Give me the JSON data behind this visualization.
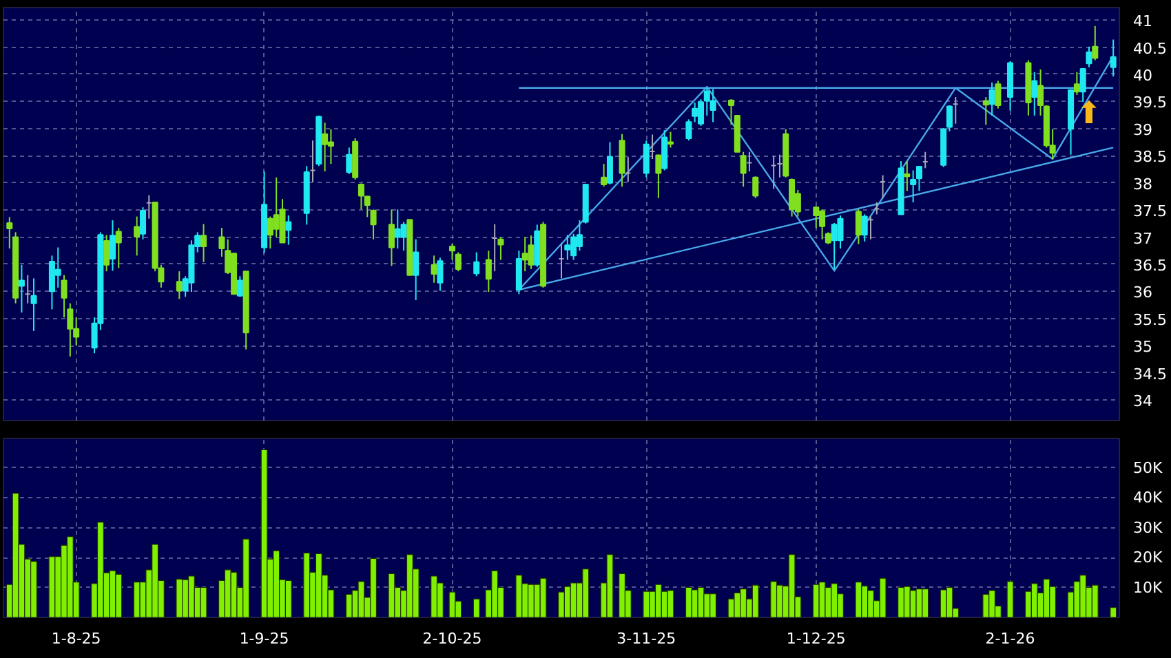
{
  "chart_data": [
    {
      "type": "candlestick",
      "x": [
        "2025-07-21",
        "2025-07-22",
        "2025-07-23",
        "2025-07-24",
        "2025-07-25",
        "2025-07-28",
        "2025-07-29",
        "2025-07-30",
        "2025-07-31",
        "2025-08-01",
        "2025-08-04",
        "2025-08-05",
        "2025-08-06",
        "2025-08-07",
        "2025-08-08",
        "2025-08-11",
        "2025-08-12",
        "2025-08-13",
        "2025-08-14",
        "2025-08-15",
        "2025-08-18",
        "2025-08-19",
        "2025-08-20",
        "2025-08-21",
        "2025-08-22",
        "2025-08-25",
        "2025-08-26",
        "2025-08-27",
        "2025-08-28",
        "2025-08-29",
        "2025-09-01",
        "2025-09-02",
        "2025-09-03",
        "2025-09-04",
        "2025-09-05",
        "2025-09-08",
        "2025-09-09",
        "2025-09-10",
        "2025-09-11",
        "2025-09-12",
        "2025-09-15",
        "2025-09-16",
        "2025-09-17",
        "2025-09-18",
        "2025-09-19",
        "2025-09-22",
        "2025-09-23",
        "2025-09-24",
        "2025-09-25",
        "2025-09-26",
        "2025-09-29",
        "2025-09-30",
        "2025-10-02",
        "2025-10-03",
        "2025-10-06",
        "2025-10-08",
        "2025-10-09",
        "2025-10-10",
        "2025-10-13",
        "2025-10-14",
        "2025-10-15",
        "2025-10-16",
        "2025-10-17",
        "2025-10-20",
        "2025-10-21",
        "2025-10-22",
        "2025-10-23",
        "2025-10-24",
        "2025-10-27",
        "2025-10-28",
        "2025-10-30",
        "2025-10-31",
        "2025-11-03",
        "2025-11-04",
        "2025-11-05",
        "2025-11-06",
        "2025-11-07",
        "2025-11-10",
        "2025-11-11",
        "2025-11-12",
        "2025-11-13",
        "2025-11-14",
        "2025-11-17",
        "2025-11-18",
        "2025-11-19",
        "2025-11-20",
        "2025-11-21",
        "2025-11-24",
        "2025-11-25",
        "2025-11-26",
        "2025-11-27",
        "2025-11-28",
        "2025-12-01",
        "2025-12-02",
        "2025-12-03",
        "2025-12-04",
        "2025-12-05",
        "2025-12-08",
        "2025-12-09",
        "2025-12-10",
        "2025-12-11",
        "2025-12-12",
        "2025-12-15",
        "2025-12-16",
        "2025-12-17",
        "2025-12-18",
        "2025-12-19",
        "2025-12-22",
        "2025-12-23",
        "2025-12-24",
        "2025-12-29",
        "2025-12-30",
        "2025-12-31",
        "2026-01-02",
        "2026-01-05",
        "2026-01-06",
        "2026-01-07",
        "2026-01-08",
        "2026-01-09",
        "2026-01-12",
        "2026-01-13",
        "2026-01-14",
        "2026-01-15",
        "2026-01-16",
        "2026-01-19"
      ],
      "ohlc": [
        [
          37.26,
          37.37,
          36.79,
          37.16
        ],
        [
          37.0,
          37.09,
          35.78,
          35.88
        ],
        [
          36.1,
          36.49,
          35.61,
          36.2
        ],
        [
          35.95,
          36.3,
          35.78,
          35.95
        ],
        [
          35.78,
          36.24,
          35.27,
          35.92
        ],
        [
          36.0,
          36.66,
          35.67,
          36.55
        ],
        [
          36.3,
          36.81,
          36.07,
          36.4
        ],
        [
          36.2,
          36.3,
          35.52,
          35.88
        ],
        [
          35.67,
          35.78,
          34.8,
          35.31
        ],
        [
          35.31,
          35.52,
          35.01,
          35.16
        ],
        [
          34.96,
          35.52,
          34.86,
          35.41
        ],
        [
          35.41,
          37.09,
          35.29,
          37.04
        ],
        [
          36.93,
          37.04,
          36.37,
          36.49
        ],
        [
          36.6,
          37.31,
          36.38,
          37.03
        ],
        [
          37.1,
          37.17,
          36.43,
          36.9
        ],
        [
          37.19,
          37.38,
          36.66,
          37.01
        ],
        [
          37.06,
          37.55,
          36.96,
          37.49
        ],
        [
          37.63,
          37.77,
          37.34,
          37.63
        ],
        [
          37.64,
          37.64,
          36.37,
          36.43
        ],
        [
          36.43,
          36.49,
          36.07,
          36.18
        ],
        [
          36.18,
          36.37,
          35.86,
          36.01
        ],
        [
          36.01,
          36.28,
          35.9,
          36.23
        ],
        [
          36.16,
          36.94,
          35.99,
          36.85
        ],
        [
          36.83,
          37.09,
          36.72,
          37.03
        ],
        [
          37.03,
          37.24,
          36.54,
          36.83
        ],
        [
          37.0,
          37.17,
          36.64,
          36.79
        ],
        [
          36.75,
          36.96,
          36.32,
          36.35
        ],
        [
          36.7,
          36.7,
          35.94,
          35.95
        ],
        [
          35.92,
          36.28,
          35.9,
          36.2
        ],
        [
          36.37,
          36.37,
          34.93,
          35.24
        ],
        [
          36.81,
          38.21,
          36.71,
          37.6
        ],
        [
          37.34,
          37.38,
          36.79,
          37.04
        ],
        [
          37.41,
          38.1,
          37.0,
          37.15
        ],
        [
          37.51,
          37.7,
          36.9,
          36.9
        ],
        [
          37.13,
          37.4,
          36.86,
          37.28
        ],
        [
          37.44,
          38.31,
          37.23,
          38.2
        ],
        [
          38.23,
          38.78,
          38.02,
          38.23
        ],
        [
          38.35,
          39.24,
          38.31,
          39.22
        ],
        [
          38.9,
          39.11,
          38.21,
          38.71
        ],
        [
          38.75,
          38.99,
          38.35,
          38.68
        ],
        [
          38.2,
          38.65,
          38.16,
          38.52
        ],
        [
          38.76,
          38.82,
          38.06,
          38.1
        ],
        [
          37.97,
          37.99,
          37.51,
          37.76
        ],
        [
          37.75,
          37.76,
          37.37,
          37.59
        ],
        [
          37.49,
          37.51,
          36.96,
          37.23
        ],
        [
          37.23,
          37.51,
          36.47,
          36.81
        ],
        [
          37.0,
          37.51,
          36.79,
          37.15
        ],
        [
          37.0,
          37.28,
          36.75,
          37.23
        ],
        [
          37.32,
          37.32,
          36.3,
          36.3
        ],
        [
          36.3,
          36.96,
          35.84,
          36.72
        ],
        [
          36.49,
          36.66,
          36.16,
          36.32
        ],
        [
          36.16,
          36.62,
          36.01,
          36.56
        ],
        [
          36.83,
          36.88,
          36.58,
          36.75
        ],
        [
          36.68,
          36.72,
          36.37,
          36.41
        ],
        [
          36.33,
          36.72,
          36.28,
          36.54
        ],
        [
          36.58,
          36.75,
          35.99,
          36.23
        ],
        [
          36.98,
          37.24,
          36.37,
          36.98
        ],
        [
          36.96,
          37.0,
          36.58,
          36.86
        ],
        [
          36.03,
          36.75,
          35.95,
          36.6
        ],
        [
          36.7,
          37.0,
          36.37,
          36.58
        ],
        [
          36.85,
          37.03,
          36.41,
          36.49
        ],
        [
          36.49,
          37.23,
          36.45,
          37.11
        ],
        [
          37.23,
          37.28,
          36.07,
          36.1
        ],
        [
          36.6,
          36.89,
          36.24,
          36.6
        ],
        [
          36.77,
          37.04,
          36.58,
          36.85
        ],
        [
          36.66,
          37.06,
          36.58,
          37.0
        ],
        [
          36.83,
          37.31,
          36.75,
          37.04
        ],
        [
          37.28,
          37.97,
          37.25,
          37.97
        ],
        [
          38.1,
          38.35,
          37.93,
          37.97
        ],
        [
          38.0,
          38.75,
          37.97,
          38.48
        ],
        [
          38.78,
          38.9,
          37.93,
          38.18
        ],
        [
          38.18,
          38.48,
          38.02,
          38.18
        ],
        [
          38.18,
          38.78,
          38.1,
          38.71
        ],
        [
          38.58,
          38.89,
          38.44,
          38.58
        ],
        [
          38.51,
          38.52,
          37.72,
          38.18
        ],
        [
          38.27,
          38.97,
          38.23,
          38.84
        ],
        [
          38.75,
          38.94,
          38.65,
          38.72
        ],
        [
          38.82,
          39.17,
          38.78,
          39.12
        ],
        [
          39.23,
          39.48,
          39.12,
          39.37
        ],
        [
          39.09,
          39.54,
          39.05,
          39.49
        ],
        [
          39.51,
          39.75,
          39.24,
          39.69
        ],
        [
          39.34,
          39.73,
          39.12,
          39.51
        ],
        [
          39.52,
          39.54,
          39.07,
          39.43
        ],
        [
          39.24,
          39.24,
          38.57,
          38.57
        ],
        [
          38.5,
          38.57,
          37.93,
          38.18
        ],
        [
          38.37,
          38.57,
          38.21,
          38.37
        ],
        [
          38.1,
          38.12,
          37.72,
          37.76
        ],
        [
          38.32,
          38.5,
          37.89,
          38.32
        ],
        [
          38.35,
          38.52,
          38.1,
          38.35
        ],
        [
          38.9,
          38.99,
          38.1,
          38.13
        ],
        [
          38.06,
          38.08,
          37.38,
          37.51
        ],
        [
          37.8,
          37.87,
          37.38,
          37.47
        ],
        [
          37.55,
          37.57,
          37.17,
          37.4
        ],
        [
          37.48,
          37.51,
          36.96,
          37.2
        ],
        [
          37.06,
          37.09,
          36.87,
          36.9
        ],
        [
          36.94,
          37.26,
          36.41,
          37.23
        ],
        [
          36.94,
          37.4,
          36.79,
          37.34
        ],
        [
          37.47,
          37.51,
          36.87,
          37.04
        ],
        [
          37.04,
          37.42,
          36.92,
          37.38
        ],
        [
          37.32,
          37.38,
          36.96,
          37.32
        ],
        [
          37.52,
          37.64,
          37.42,
          37.52
        ],
        [
          38.02,
          38.14,
          37.72,
          38.02
        ],
        [
          37.42,
          38.4,
          37.42,
          38.27
        ],
        [
          38.16,
          38.4,
          37.85,
          38.12
        ],
        [
          37.97,
          38.23,
          37.64,
          38.06
        ],
        [
          38.08,
          38.31,
          37.85,
          38.3
        ],
        [
          38.39,
          38.57,
          38.27,
          38.39
        ],
        [
          38.33,
          39.01,
          38.29,
          38.99
        ],
        [
          39.03,
          39.43,
          38.95,
          39.41
        ],
        [
          39.45,
          39.58,
          39.09,
          39.45
        ],
        [
          39.51,
          39.58,
          39.07,
          39.44
        ],
        [
          39.45,
          39.85,
          39.24,
          39.71
        ],
        [
          39.82,
          39.88,
          39.37,
          39.43
        ],
        [
          39.58,
          40.24,
          39.33,
          40.21
        ],
        [
          40.21,
          40.26,
          39.24,
          39.48
        ],
        [
          39.58,
          40.04,
          39.24,
          39.88
        ],
        [
          39.79,
          40.09,
          39.24,
          39.43
        ],
        [
          39.41,
          39.43,
          38.65,
          38.69
        ],
        [
          38.69,
          38.99,
          38.44,
          38.55
        ],
        [
          38.99,
          39.71,
          38.52,
          39.71
        ],
        [
          39.82,
          40.04,
          39.62,
          39.68
        ],
        [
          39.68,
          40.1,
          39.49,
          40.1
        ],
        [
          40.2,
          40.51,
          40.13,
          40.41
        ],
        [
          40.51,
          40.89,
          40.26,
          40.3
        ],
        [
          40.13,
          40.64,
          39.96,
          40.32
        ]
      ],
      "colors": [
        "#80e020",
        "#80e020",
        "#20e8f0",
        "#a8a8b8",
        "#20e8f0",
        "#20e8f0",
        "#20e8f0",
        "#80e020",
        "#80e020",
        "#80e020",
        "#20e8f0",
        "#20e8f0",
        "#80e020",
        "#20e8f0",
        "#80e020",
        "#80e020",
        "#20e8f0",
        "#a8a8b8",
        "#80e020",
        "#80e020",
        "#80e020",
        "#20e8f0",
        "#20e8f0",
        "#20e8f0",
        "#80e020",
        "#80e020",
        "#80e020",
        "#80e020",
        "#20e8f0",
        "#80e020",
        "#20e8f0",
        "#80e020",
        "#80e020",
        "#80e020",
        "#20e8f0",
        "#20e8f0",
        "#a8a8b8",
        "#20e8f0",
        "#80e020",
        "#80e020",
        "#20e8f0",
        "#80e020",
        "#80e020",
        "#80e020",
        "#80e020",
        "#80e020",
        "#20e8f0",
        "#20e8f0",
        "#80e020",
        "#20e8f0",
        "#80e020",
        "#20e8f0",
        "#80e020",
        "#80e020",
        "#20e8f0",
        "#80e020",
        "#a8a8b8",
        "#80e020",
        "#20e8f0",
        "#80e020",
        "#80e020",
        "#20e8f0",
        "#80e020",
        "#a8a8b8",
        "#20e8f0",
        "#20e8f0",
        "#20e8f0",
        "#20e8f0",
        "#80e020",
        "#20e8f0",
        "#80e020",
        "#a8a8b8",
        "#20e8f0",
        "#a8a8b8",
        "#80e020",
        "#20e8f0",
        "#80e020",
        "#20e8f0",
        "#20e8f0",
        "#20e8f0",
        "#20e8f0",
        "#20e8f0",
        "#80e020",
        "#80e020",
        "#80e020",
        "#a8a8b8",
        "#80e020",
        "#a8a8b8",
        "#a8a8b8",
        "#80e020",
        "#80e020",
        "#80e020",
        "#80e020",
        "#80e020",
        "#80e020",
        "#20e8f0",
        "#20e8f0",
        "#80e020",
        "#20e8f0",
        "#a8a8b8",
        "#a8a8b8",
        "#a8a8b8",
        "#20e8f0",
        "#80e020",
        "#20e8f0",
        "#20e8f0",
        "#a8a8b8",
        "#20e8f0",
        "#20e8f0",
        "#a8a8b8",
        "#80e020",
        "#20e8f0",
        "#80e020",
        "#20e8f0",
        "#80e020",
        "#20e8f0",
        "#80e020",
        "#80e020",
        "#80e020",
        "#20e8f0",
        "#80e020",
        "#20e8f0",
        "#20e8f0",
        "#80e020",
        "#20e8f0"
      ],
      "series": [
        {
          "type": "line",
          "color": "#48a8e8",
          "x": [
            "2025-10-13",
            "2026-01-19"
          ],
          "values": [
            39.75,
            39.75
          ]
        },
        {
          "type": "line",
          "color": "#48a8e8",
          "x": [
            "2025-10-13",
            "2026-01-19"
          ],
          "values": [
            36.03,
            38.65
          ]
        },
        {
          "type": "line",
          "color": "#48a8e8",
          "x": [
            "2025-10-13",
            "2025-11-13",
            "2025-12-04",
            "2025-12-24",
            "2026-01-09",
            "2026-01-19"
          ],
          "values": [
            36.03,
            39.77,
            36.38,
            39.75,
            38.44,
            40.34
          ]
        }
      ],
      "annotations": [
        {
          "text": "⬆",
          "x": "2026-01-15",
          "y": 39.58
        }
      ],
      "xlim": [
        "2025-07-20",
        "2026-01-20"
      ],
      "xticks": [
        {
          "value": "2025-08-01",
          "label": null
        },
        {
          "value": "2025-09-01",
          "label": null
        },
        {
          "value": "2025-10-02",
          "label": null
        },
        {
          "value": "2025-11-03",
          "label": null
        },
        {
          "value": "2025-12-01",
          "label": null
        },
        {
          "value": "2026-01-02",
          "label": null
        }
      ],
      "ylim": [
        33.62,
        41.23
      ],
      "yticks": [
        34,
        34.5,
        35,
        35.5,
        36,
        36.5,
        37,
        37.5,
        38,
        38.5,
        39,
        39.5,
        40,
        40.5,
        41
      ],
      "tick_labels": "y",
      "grid": true
    },
    {
      "type": "bar",
      "color": "#80f000",
      "x": [
        "2025-07-21",
        "2025-07-22",
        "2025-07-23",
        "2025-07-24",
        "2025-07-25",
        "2025-07-28",
        "2025-07-29",
        "2025-07-30",
        "2025-07-31",
        "2025-08-01",
        "2025-08-04",
        "2025-08-05",
        "2025-08-06",
        "2025-08-07",
        "2025-08-08",
        "2025-08-11",
        "2025-08-12",
        "2025-08-13",
        "2025-08-14",
        "2025-08-15",
        "2025-08-18",
        "2025-08-19",
        "2025-08-20",
        "2025-08-21",
        "2025-08-22",
        "2025-08-25",
        "2025-08-26",
        "2025-08-27",
        "2025-08-28",
        "2025-08-29",
        "2025-09-01",
        "2025-09-02",
        "2025-09-03",
        "2025-09-04",
        "2025-09-05",
        "2025-09-08",
        "2025-09-09",
        "2025-09-10",
        "2025-09-11",
        "2025-09-12",
        "2025-09-15",
        "2025-09-16",
        "2025-09-17",
        "2025-09-18",
        "2025-09-19",
        "2025-09-22",
        "2025-09-23",
        "2025-09-24",
        "2025-09-25",
        "2025-09-26",
        "2025-09-29",
        "2025-09-30",
        "2025-10-02",
        "2025-10-03",
        "2025-10-06",
        "2025-10-08",
        "2025-10-09",
        "2025-10-10",
        "2025-10-13",
        "2025-10-14",
        "2025-10-15",
        "2025-10-16",
        "2025-10-17",
        "2025-10-20",
        "2025-10-21",
        "2025-10-22",
        "2025-10-23",
        "2025-10-24",
        "2025-10-27",
        "2025-10-28",
        "2025-10-30",
        "2025-10-31",
        "2025-11-03",
        "2025-11-04",
        "2025-11-05",
        "2025-11-06",
        "2025-11-07",
        "2025-11-10",
        "2025-11-11",
        "2025-11-12",
        "2025-11-13",
        "2025-11-14",
        "2025-11-17",
        "2025-11-18",
        "2025-11-19",
        "2025-11-20",
        "2025-11-21",
        "2025-11-24",
        "2025-11-25",
        "2025-11-26",
        "2025-11-27",
        "2025-11-28",
        "2025-12-01",
        "2025-12-02",
        "2025-12-03",
        "2025-12-04",
        "2025-12-05",
        "2025-12-08",
        "2025-12-09",
        "2025-12-10",
        "2025-12-11",
        "2025-12-12",
        "2025-12-15",
        "2025-12-16",
        "2025-12-17",
        "2025-12-18",
        "2025-12-19",
        "2025-12-22",
        "2025-12-23",
        "2025-12-24",
        "2025-12-29",
        "2025-12-30",
        "2025-12-31",
        "2026-01-02",
        "2026-01-05",
        "2026-01-06",
        "2026-01-07",
        "2026-01-08",
        "2026-01-09",
        "2026-01-12",
        "2026-01-13",
        "2026-01-14",
        "2026-01-15",
        "2026-01-16",
        "2026-01-19"
      ],
      "values": [
        11000,
        41500,
        24400,
        19500,
        18700,
        20300,
        20300,
        24100,
        27000,
        11800,
        11300,
        31800,
        14900,
        15600,
        14400,
        11800,
        11800,
        15900,
        24400,
        12300,
        12800,
        12600,
        13800,
        10000,
        10000,
        12300,
        15900,
        15100,
        10000,
        26200,
        56000,
        19500,
        22300,
        12600,
        12300,
        21500,
        15100,
        21300,
        14100,
        9200,
        7700,
        9000,
        12000,
        6700,
        19700,
        14600,
        10000,
        9000,
        21000,
        16200,
        13800,
        11500,
        8500,
        5400,
        6200,
        9200,
        15600,
        10000,
        14100,
        11300,
        11000,
        11000,
        13100,
        8500,
        10300,
        11500,
        11500,
        16200,
        11500,
        21000,
        14600,
        9000,
        8700,
        8700,
        11000,
        8700,
        9000,
        10000,
        9200,
        10000,
        7900,
        7900,
        6200,
        8200,
        9500,
        6200,
        10800,
        12000,
        10800,
        10500,
        21000,
        6900,
        11000,
        11800,
        10000,
        11300,
        7900,
        11800,
        10500,
        9000,
        5600,
        13100,
        10000,
        10300,
        9000,
        9500,
        9500,
        9200,
        10000,
        3000,
        7700,
        9000,
        3800,
        12000,
        8700,
        11300,
        8200,
        12800,
        10300,
        8500,
        12000,
        14100,
        10000,
        10800,
        3300
      ],
      "xticks": [
        {
          "value": "2025-08-01",
          "label": "1-8-25"
        },
        {
          "value": "2025-09-01",
          "label": "1-9-25"
        },
        {
          "value": "2025-10-02",
          "label": "2-10-25"
        },
        {
          "value": "2025-11-03",
          "label": "3-11-25"
        },
        {
          "value": "2025-12-01",
          "label": "1-12-25"
        },
        {
          "value": "2026-01-02",
          "label": "2-1-26"
        }
      ],
      "xlim": [
        "2025-07-20",
        "2026-01-20"
      ],
      "ylim": [
        0,
        59800
      ],
      "yticks": [
        {
          "value": 10000,
          "label": "10K"
        },
        {
          "value": 20000,
          "label": "20K"
        },
        {
          "value": 30000,
          "label": "30K"
        },
        {
          "value": 40000,
          "label": "40K"
        },
        {
          "value": 50000,
          "label": "50K"
        }
      ],
      "grid": true
    }
  ]
}
